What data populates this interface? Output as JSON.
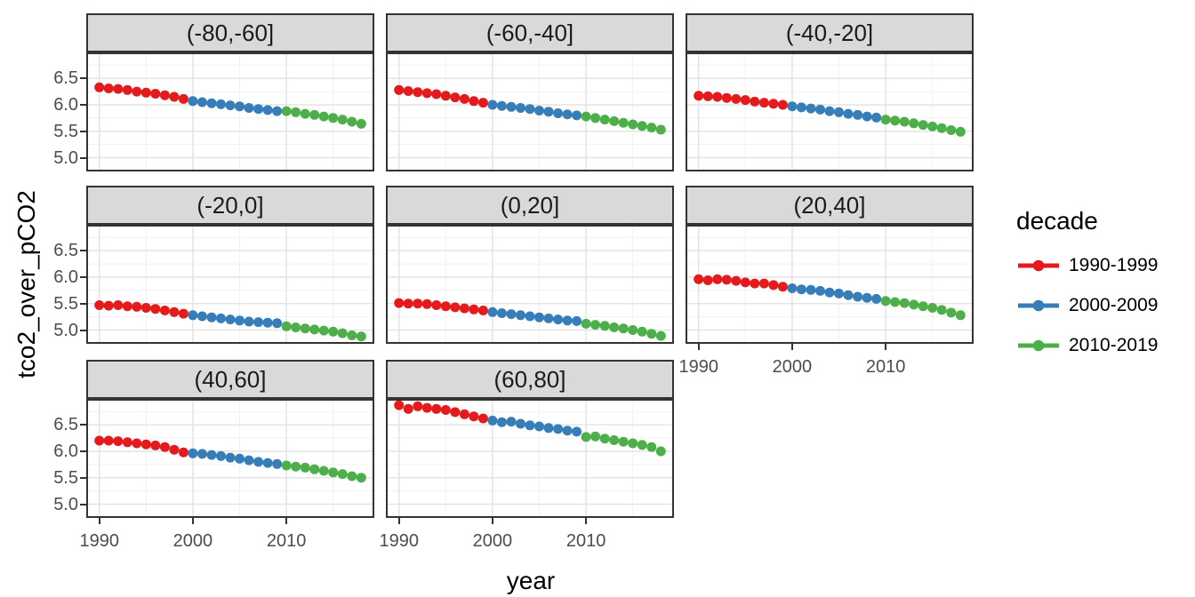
{
  "chart_data": {
    "type": "scatter",
    "title": "",
    "xlabel": "year",
    "ylabel": "tco2_over_pCO2",
    "grid": true,
    "legend": {
      "title": "decade",
      "position": "right"
    },
    "decades": [
      {
        "label": "1990-1999",
        "from": 1990,
        "to": 1999,
        "color": "#E41A1C"
      },
      {
        "label": "2000-2009",
        "from": 2000,
        "to": 2009,
        "color": "#377EB8"
      },
      {
        "label": "2010-2019",
        "from": 2010,
        "to": 2019,
        "color": "#4DAF4A"
      }
    ],
    "years": [
      1990,
      1991,
      1992,
      1993,
      1994,
      1995,
      1996,
      1997,
      1998,
      1999,
      2000,
      2001,
      2002,
      2003,
      2004,
      2005,
      2006,
      2007,
      2008,
      2009,
      2010,
      2011,
      2012,
      2013,
      2014,
      2015,
      2016,
      2017,
      2018
    ],
    "x_ticks": [
      {
        "value": 1990,
        "label": "1990"
      },
      {
        "value": 2000,
        "label": "2000"
      },
      {
        "value": 2010,
        "label": "2010"
      }
    ],
    "y_ticks": [
      {
        "value": 6.5,
        "label": "6.5"
      },
      {
        "value": 6.0,
        "label": "6.0"
      },
      {
        "value": 5.5,
        "label": "5.5"
      },
      {
        "value": 5.0,
        "label": "5.0"
      }
    ],
    "x_minor": [
      1995,
      2005,
      2015
    ],
    "y_minor": [
      6.75,
      6.25,
      5.75,
      5.25,
      4.75
    ],
    "xlim": [
      1988.6,
      2019.4
    ],
    "ylim": [
      4.74,
      6.99
    ],
    "facets": [
      {
        "label": "(-80,-60]",
        "values": [
          6.33,
          6.31,
          6.3,
          6.28,
          6.25,
          6.23,
          6.21,
          6.18,
          6.15,
          6.11,
          6.07,
          6.05,
          6.03,
          6.01,
          5.99,
          5.97,
          5.94,
          5.92,
          5.9,
          5.88,
          5.88,
          5.86,
          5.83,
          5.81,
          5.78,
          5.75,
          5.72,
          5.68,
          5.64
        ]
      },
      {
        "label": "(-60,-40]",
        "values": [
          6.28,
          6.26,
          6.24,
          6.22,
          6.2,
          6.17,
          6.14,
          6.11,
          6.07,
          6.04,
          6.0,
          5.98,
          5.96,
          5.94,
          5.92,
          5.89,
          5.87,
          5.84,
          5.82,
          5.8,
          5.78,
          5.75,
          5.72,
          5.69,
          5.66,
          5.63,
          5.6,
          5.57,
          5.53
        ]
      },
      {
        "label": "(-40,-20]",
        "values": [
          6.17,
          6.16,
          6.15,
          6.13,
          6.11,
          6.09,
          6.06,
          6.04,
          6.02,
          6.0,
          5.97,
          5.95,
          5.93,
          5.91,
          5.88,
          5.86,
          5.83,
          5.81,
          5.78,
          5.76,
          5.72,
          5.7,
          5.68,
          5.65,
          5.62,
          5.59,
          5.56,
          5.52,
          5.49
        ]
      },
      {
        "label": "(-20,0]",
        "values": [
          5.47,
          5.46,
          5.47,
          5.45,
          5.44,
          5.42,
          5.4,
          5.37,
          5.34,
          5.31,
          5.28,
          5.26,
          5.24,
          5.22,
          5.2,
          5.18,
          5.16,
          5.15,
          5.14,
          5.13,
          5.07,
          5.05,
          5.03,
          5.01,
          4.99,
          4.97,
          4.94,
          4.9,
          4.88
        ]
      },
      {
        "label": "(0,20]",
        "values": [
          5.51,
          5.5,
          5.5,
          5.49,
          5.47,
          5.45,
          5.43,
          5.41,
          5.39,
          5.37,
          5.34,
          5.32,
          5.3,
          5.28,
          5.26,
          5.24,
          5.22,
          5.2,
          5.18,
          5.17,
          5.12,
          5.1,
          5.08,
          5.05,
          5.03,
          5.0,
          4.97,
          4.93,
          4.89
        ]
      },
      {
        "label": "(20,40]",
        "values": [
          5.96,
          5.94,
          5.96,
          5.95,
          5.93,
          5.9,
          5.88,
          5.88,
          5.85,
          5.82,
          5.79,
          5.77,
          5.76,
          5.74,
          5.71,
          5.69,
          5.66,
          5.63,
          5.61,
          5.59,
          5.55,
          5.53,
          5.51,
          5.48,
          5.45,
          5.42,
          5.38,
          5.33,
          5.28
        ]
      },
      {
        "label": "(40,60]",
        "values": [
          6.2,
          6.2,
          6.19,
          6.17,
          6.15,
          6.13,
          6.11,
          6.08,
          6.03,
          5.98,
          5.96,
          5.95,
          5.93,
          5.91,
          5.88,
          5.86,
          5.83,
          5.8,
          5.78,
          5.76,
          5.73,
          5.71,
          5.69,
          5.66,
          5.63,
          5.6,
          5.57,
          5.53,
          5.5
        ]
      },
      {
        "label": "(60,80]",
        "values": [
          6.87,
          6.8,
          6.85,
          6.82,
          6.8,
          6.78,
          6.74,
          6.7,
          6.66,
          6.62,
          6.58,
          6.55,
          6.56,
          6.52,
          6.49,
          6.47,
          6.44,
          6.42,
          6.39,
          6.37,
          6.27,
          6.28,
          6.24,
          6.21,
          6.18,
          6.15,
          6.12,
          6.08,
          6.0
        ]
      }
    ]
  },
  "theme": {
    "background": "#ffffff",
    "strip_bg": "#d9d9d9",
    "panel_border": "#333333",
    "grid_major": "#e4e4e4",
    "grid_minor": "#f1f1f1",
    "tick_color": "#333333",
    "tick_label_color": "#4d4d4d",
    "title_color": "#000000"
  }
}
